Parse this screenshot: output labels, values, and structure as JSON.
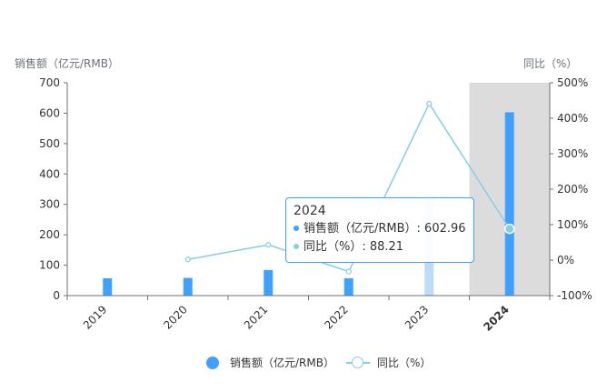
{
  "chart_data": {
    "type": "bar",
    "categories": [
      "2019",
      "2020",
      "2021",
      "2022",
      "2023",
      "2024"
    ],
    "series": [
      {
        "name": "销售额（亿元/RMB）",
        "type": "bar",
        "axis": "left",
        "values": [
          57,
          58,
          84,
          57,
          320,
          602.96
        ]
      },
      {
        "name": "同比（%）",
        "type": "line",
        "axis": "right",
        "values": [
          null,
          2,
          43,
          -32,
          441,
          88.21
        ]
      }
    ],
    "y_left": {
      "label": "销售额（亿元/RMB）",
      "min": 0,
      "max": 700,
      "step": 100,
      "ticks": [
        "0",
        "100",
        "200",
        "300",
        "400",
        "500",
        "600",
        "700"
      ]
    },
    "y_right": {
      "label": "同比（%）",
      "min": -100,
      "max": 500,
      "step": 100,
      "ticks": [
        "-100%",
        "0%",
        "100%",
        "200%",
        "300%",
        "400%",
        "500%"
      ]
    },
    "highlighted_category": "2024",
    "grid": false,
    "legend_position": "bottom-center"
  },
  "tooltip": {
    "title": "2024",
    "row1": "销售额（亿元/RMB）: 602.96",
    "row2": "同比（%）: 88.21"
  },
  "legend": {
    "bar_label": "销售额（亿元/RMB）",
    "line_label": "同比（%）"
  },
  "colors": {
    "bar": "#3fa0ff",
    "bar_faded": "#bcdcf9",
    "line": "#86cde8",
    "highlight_band": "#dcdcdc",
    "axis": "#6e7079",
    "text": "#333333"
  }
}
